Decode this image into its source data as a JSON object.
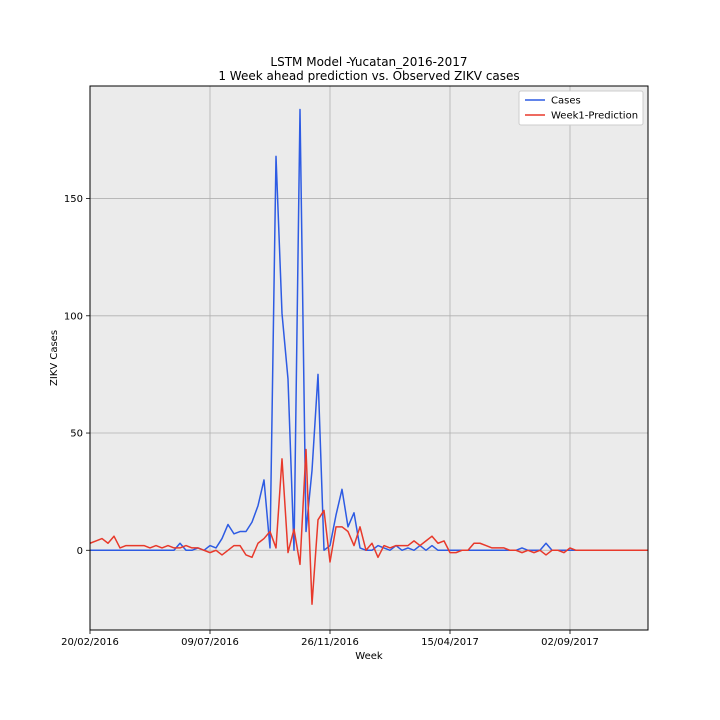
{
  "chart_data": {
    "type": "line",
    "title_line1": "LSTM Model -Yucatan_2016-2017",
    "title_line2": "1 Week ahead prediction vs. Observed ZIKV cases",
    "xlabel": "Week",
    "ylabel": "ZIKV Cases",
    "xlim": [
      0,
      93
    ],
    "ylim": [
      -34,
      198
    ],
    "grid": true,
    "legend_position": "top-right",
    "x_ticks": [
      {
        "x": 0,
        "label": "20/02/2016"
      },
      {
        "x": 20,
        "label": "09/07/2016"
      },
      {
        "x": 40,
        "label": "26/11/2016"
      },
      {
        "x": 60,
        "label": "15/04/2017"
      },
      {
        "x": 80,
        "label": "02/09/2017"
      }
    ],
    "y_ticks": [
      {
        "y": 0,
        "label": "0"
      },
      {
        "y": 50,
        "label": "50"
      },
      {
        "y": 100,
        "label": "100"
      },
      {
        "y": 150,
        "label": "150"
      }
    ],
    "series": [
      {
        "name": "Cases",
        "color": "#2d5be3",
        "values": [
          0,
          0,
          0,
          0,
          0,
          0,
          0,
          0,
          0,
          0,
          0,
          0,
          0,
          0,
          0,
          3,
          0,
          0,
          1,
          0,
          2,
          1,
          5,
          11,
          7,
          8,
          8,
          12,
          19,
          30,
          1,
          168,
          101,
          73,
          0,
          188,
          8,
          34,
          75,
          0,
          2,
          15,
          26,
          10,
          16,
          1,
          0,
          0,
          2,
          1,
          0,
          2,
          0,
          1,
          0,
          2,
          0,
          2,
          0,
          0,
          0,
          0,
          0,
          0,
          0,
          0,
          0,
          0,
          0,
          0,
          0,
          0,
          1,
          0,
          0,
          0,
          3,
          0,
          0,
          0,
          0,
          0,
          0,
          0,
          0,
          0,
          0,
          0,
          0,
          0,
          0,
          0,
          0,
          0
        ]
      },
      {
        "name": "Week1-Prediction",
        "color": "#e8392b",
        "values": [
          3,
          4,
          5,
          3,
          6,
          1,
          2,
          2,
          2,
          2,
          1,
          2,
          1,
          2,
          1,
          1,
          2,
          1,
          1,
          0,
          -1,
          0,
          -2,
          0,
          2,
          2,
          -2,
          -3,
          3,
          5,
          8,
          1,
          39,
          -1,
          9,
          -6,
          43,
          -23,
          13,
          17,
          -5,
          10,
          10,
          8,
          2,
          10,
          0,
          3,
          -3,
          2,
          1,
          2,
          2,
          2,
          4,
          2,
          4,
          6,
          3,
          4,
          -1,
          -1,
          0,
          0,
          3,
          3,
          2,
          1,
          1,
          1,
          0,
          0,
          -1,
          0,
          -1,
          0,
          -2,
          0,
          0,
          -1,
          1,
          0,
          0,
          0,
          0,
          0,
          0,
          0,
          0,
          0,
          0,
          0,
          0,
          0
        ]
      }
    ]
  }
}
